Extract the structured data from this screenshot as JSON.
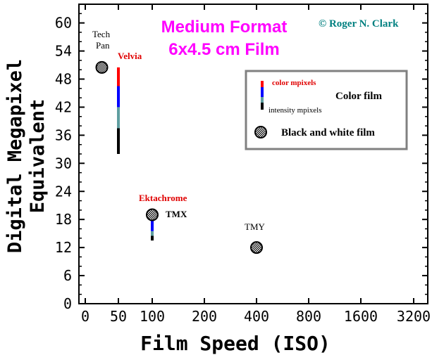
{
  "chart_data": {
    "type": "scatter",
    "title": "Medium Format",
    "subtitle": "6x4.5 cm Film",
    "copyright": "© Roger N. Clark",
    "xlabel": "Film Speed (ISO)",
    "ylabel_line1": "Digital Megapixel",
    "ylabel_line2": "Equivalent",
    "x_ticks": [
      "0",
      "50",
      "100",
      "200",
      "400",
      "800",
      "1600",
      "3200"
    ],
    "y_ticks": [
      0,
      6,
      12,
      18,
      24,
      30,
      36,
      42,
      48,
      54,
      60
    ],
    "ylim": [
      0,
      64
    ],
    "grid": false,
    "legend_position": "top-right",
    "legend": {
      "color_mpixels": "color mpixels",
      "color_film": "Color film",
      "intensity_mpixels": "intensity mpixels",
      "bw_film": "Black and white film"
    },
    "colors": {
      "title": "#ff00ff",
      "copyright": "#008080",
      "color_label": "#e00000",
      "red_segment": "#ff0000",
      "blue_segment": "#0000ff",
      "teal_segment": "#5f9ea0",
      "black_segment": "#000000"
    },
    "bw_films": [
      {
        "name": "Tech Pan",
        "name_line1": "Tech",
        "name_line2": "Pan",
        "iso": 25,
        "mpixels": 50.5
      },
      {
        "name": "TMX",
        "iso": 100,
        "mpixels": 19
      },
      {
        "name": "TMY",
        "iso": 400,
        "mpixels": 12
      }
    ],
    "color_films": [
      {
        "name": "Velvia",
        "iso": 50,
        "segments": [
          {
            "kind": "red",
            "from": 46.5,
            "to": 50.5
          },
          {
            "kind": "blue",
            "from": 42,
            "to": 46.5
          },
          {
            "kind": "teal",
            "from": 37.5,
            "to": 42
          },
          {
            "kind": "black",
            "from": 32,
            "to": 37.5
          }
        ]
      },
      {
        "name": "Ektachrome",
        "iso": 100,
        "segments": [
          {
            "kind": "red",
            "from": 18,
            "to": 20
          },
          {
            "kind": "blue",
            "from": 15.5,
            "to": 18
          },
          {
            "kind": "teal",
            "from": 14.5,
            "to": 15.5
          },
          {
            "kind": "black",
            "from": 13.5,
            "to": 14.5
          }
        ]
      }
    ]
  }
}
